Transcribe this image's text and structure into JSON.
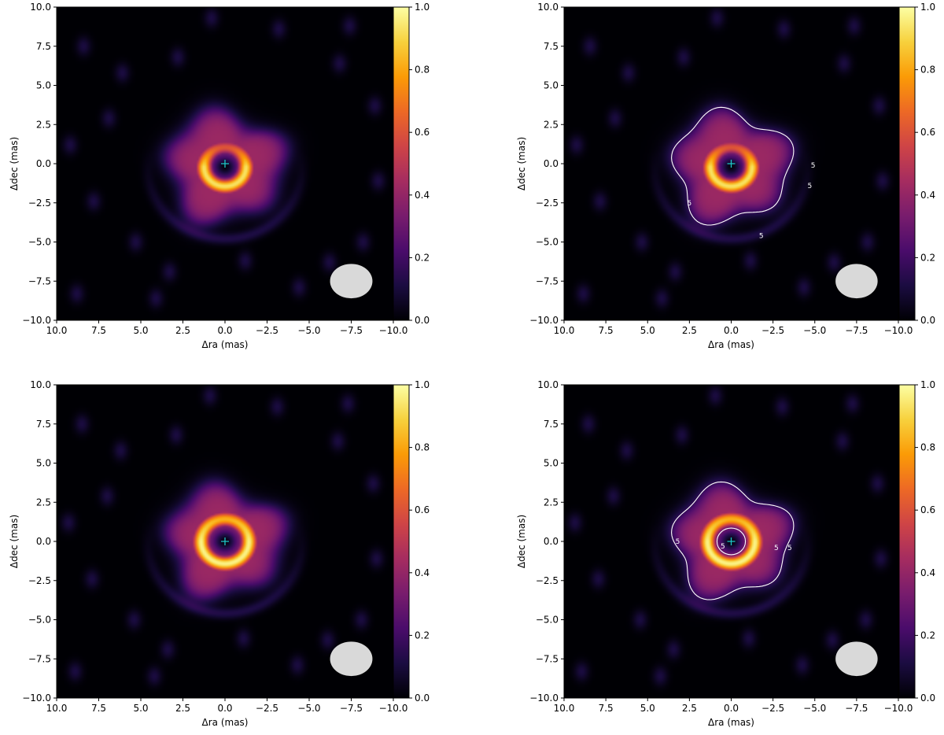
{
  "colormap": [
    "#000004",
    "#1b0c41",
    "#4a0c6b",
    "#781c6d",
    "#a52c60",
    "#cf4446",
    "#ed6925",
    "#fb9b06",
    "#f7d13d",
    "#fcffa4"
  ],
  "contour_color": "#ffffff",
  "marker_color": "#1ec8c8",
  "beam_color": "#d9d9d9",
  "chart_data": [
    {
      "type": "heatmap",
      "panel": "top-left",
      "xlabel": "Δra (mas)",
      "ylabel": "Δdec (mas)",
      "xlim": [
        10,
        -10
      ],
      "ylim": [
        -10,
        10
      ],
      "xticks": [
        "10.0",
        "7.5",
        "5.0",
        "2.5",
        "0.0",
        "−2.5",
        "−5.0",
        "−7.5",
        "−10.0"
      ],
      "yticks": [
        "10.0",
        "7.5",
        "5.0",
        "2.5",
        "0.0",
        "−2.5",
        "−5.0",
        "−7.5",
        "−10.0"
      ],
      "colorbar": {
        "min": 0.0,
        "max": 1.0,
        "ticks": [
          "0.0",
          "0.2",
          "0.4",
          "0.6",
          "0.8",
          "1.0"
        ]
      },
      "center_marker": [
        0.0,
        0.0
      ],
      "ring": {
        "center": [
          0.0,
          -0.2
        ],
        "radius": 1.2,
        "peak": 1.0,
        "brightest_side": "south",
        "asymmetry": 0.35
      },
      "halo_radius": 3.3,
      "beam": {
        "x": -7.5,
        "y": -7.5,
        "major": 1.4,
        "minor": 1.1
      },
      "contour_level_label": "",
      "contour_labels": []
    },
    {
      "type": "heatmap",
      "panel": "top-right",
      "xlabel": "Δra (mas)",
      "ylabel": "Δdec (mas)",
      "xlim": [
        10,
        -10
      ],
      "ylim": [
        -10,
        10
      ],
      "xticks": [
        "10.0",
        "7.5",
        "5.0",
        "2.5",
        "0.0",
        "−2.5",
        "−5.0",
        "−7.5",
        "−10.0"
      ],
      "yticks": [
        "10.0",
        "7.5",
        "5.0",
        "2.5",
        "0.0",
        "−2.5",
        "−5.0",
        "−7.5",
        "−10.0"
      ],
      "colorbar": {
        "min": 0.0,
        "max": 1.0,
        "ticks": [
          "0.0",
          "0.2",
          "0.4",
          "0.6",
          "0.8",
          "1.0"
        ]
      },
      "center_marker": [
        0.0,
        0.0
      ],
      "ring": {
        "center": [
          0.0,
          -0.2
        ],
        "radius": 1.2,
        "peak": 1.0,
        "brightest_side": "south",
        "asymmetry": 0.35
      },
      "halo_radius": 3.3,
      "beam": {
        "x": -7.5,
        "y": -7.5,
        "major": 1.4,
        "minor": 1.1
      },
      "contour_labels": [
        {
          "text": "5",
          "x": 2.5,
          "y": -2.5
        },
        {
          "text": "5",
          "x": -4.9,
          "y": -0.1
        },
        {
          "text": "5",
          "x": -4.7,
          "y": -1.4
        },
        {
          "text": "5",
          "x": -1.8,
          "y": -4.6
        }
      ]
    },
    {
      "type": "heatmap",
      "panel": "bottom-left",
      "xlabel": "Δra (mas)",
      "ylabel": "Δdec (mas)",
      "xlim": [
        10,
        -10
      ],
      "ylim": [
        -10,
        10
      ],
      "xticks": [
        "10.0",
        "7.5",
        "5.0",
        "2.5",
        "0.0",
        "−2.5",
        "−5.0",
        "−7.5",
        "−10.0"
      ],
      "yticks": [
        "10.0",
        "7.5",
        "5.0",
        "2.5",
        "0.0",
        "−2.5",
        "−5.0",
        "−7.5",
        "−10.0"
      ],
      "colorbar": {
        "min": 0.0,
        "max": 1.0,
        "ticks": [
          "0.0",
          "0.2",
          "0.4",
          "0.6",
          "0.8",
          "1.0"
        ]
      },
      "center_marker": [
        0.0,
        0.0
      ],
      "ring": {
        "center": [
          0.0,
          0.0
        ],
        "radius": 1.4,
        "peak": 1.0,
        "brightest_side": "south",
        "asymmetry": 0.15
      },
      "halo_radius": 3.3,
      "beam": {
        "x": -7.5,
        "y": -7.5,
        "major": 1.4,
        "minor": 1.1
      },
      "contour_labels": []
    },
    {
      "type": "heatmap",
      "panel": "bottom-right",
      "xlabel": "Δra (mas)",
      "ylabel": "Δdec (mas)",
      "xlim": [
        10,
        -10
      ],
      "ylim": [
        -10,
        10
      ],
      "xticks": [
        "10.0",
        "7.5",
        "5.0",
        "2.5",
        "0.0",
        "−2.5",
        "−5.0",
        "−7.5",
        "−10.0"
      ],
      "yticks": [
        "10.0",
        "7.5",
        "5.0",
        "2.5",
        "0.0",
        "−2.5",
        "−5.0",
        "−7.5",
        "−10.0"
      ],
      "colorbar": {
        "min": 0.0,
        "max": 1.0,
        "ticks": [
          "0.0",
          "0.2",
          "0.4",
          "0.6",
          "0.8",
          "1.0"
        ]
      },
      "center_marker": [
        0.0,
        0.0
      ],
      "ring": {
        "center": [
          0.0,
          0.0
        ],
        "radius": 1.4,
        "peak": 1.0,
        "brightest_side": "south",
        "asymmetry": 0.15
      },
      "halo_radius": 3.3,
      "beam": {
        "x": -7.5,
        "y": -7.5,
        "major": 1.4,
        "minor": 1.1
      },
      "contour_labels": [
        {
          "text": "5",
          "x": 3.2,
          "y": 0.0
        },
        {
          "text": "5",
          "x": 0.5,
          "y": -0.3
        },
        {
          "text": "5",
          "x": -2.7,
          "y": -0.4
        },
        {
          "text": "5",
          "x": -3.5,
          "y": -0.4
        }
      ]
    }
  ]
}
